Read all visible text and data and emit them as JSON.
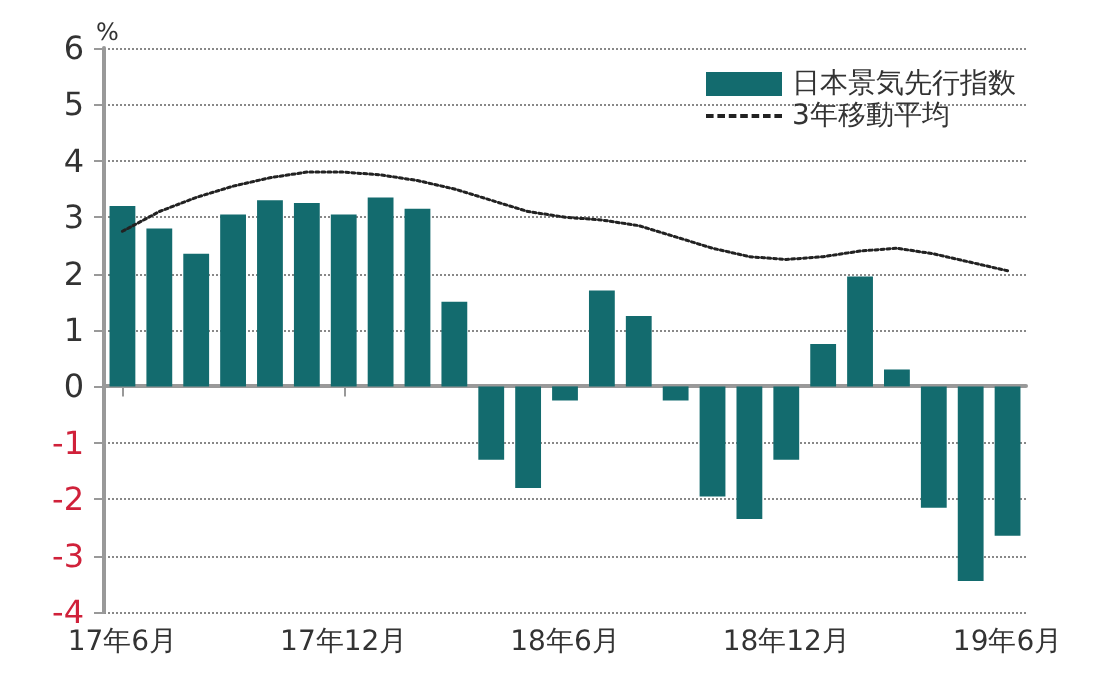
{
  "chart_data": {
    "type": "bar",
    "ylabel": "%",
    "categories": [
      "17年6月",
      null,
      null,
      null,
      null,
      null,
      "17年12月",
      null,
      null,
      null,
      null,
      null,
      "18年6月",
      null,
      null,
      null,
      null,
      null,
      "18年12月",
      null,
      null,
      null,
      null,
      null,
      "19年6月"
    ],
    "series": [
      {
        "name": "日本景気先行指数",
        "color": "#136b6e",
        "values": [
          3.2,
          2.8,
          2.35,
          3.05,
          3.3,
          3.25,
          3.05,
          3.35,
          3.15,
          1.5,
          -1.3,
          -1.8,
          -0.25,
          1.7,
          1.25,
          -0.25,
          -1.95,
          -2.35,
          -1.3,
          0.75,
          1.95,
          0.3,
          -2.15,
          -3.45,
          -2.65
        ]
      },
      {
        "name": "3年移動平均",
        "type": "line",
        "color": "#222222",
        "line_style": "dotted",
        "values": [
          2.75,
          3.1,
          3.35,
          3.55,
          3.7,
          3.8,
          3.8,
          3.75,
          3.65,
          3.5,
          3.3,
          3.1,
          3.0,
          2.95,
          2.85,
          2.65,
          2.45,
          2.3,
          2.25,
          2.3,
          2.4,
          2.45,
          2.35,
          2.2,
          2.05
        ]
      }
    ],
    "ylim": [
      -4,
      6
    ],
    "yticks": [
      -4,
      -3,
      -2,
      -1,
      0,
      1,
      2,
      3,
      4,
      5,
      6
    ],
    "grid": "y",
    "legend": "top right",
    "marker": "none"
  }
}
